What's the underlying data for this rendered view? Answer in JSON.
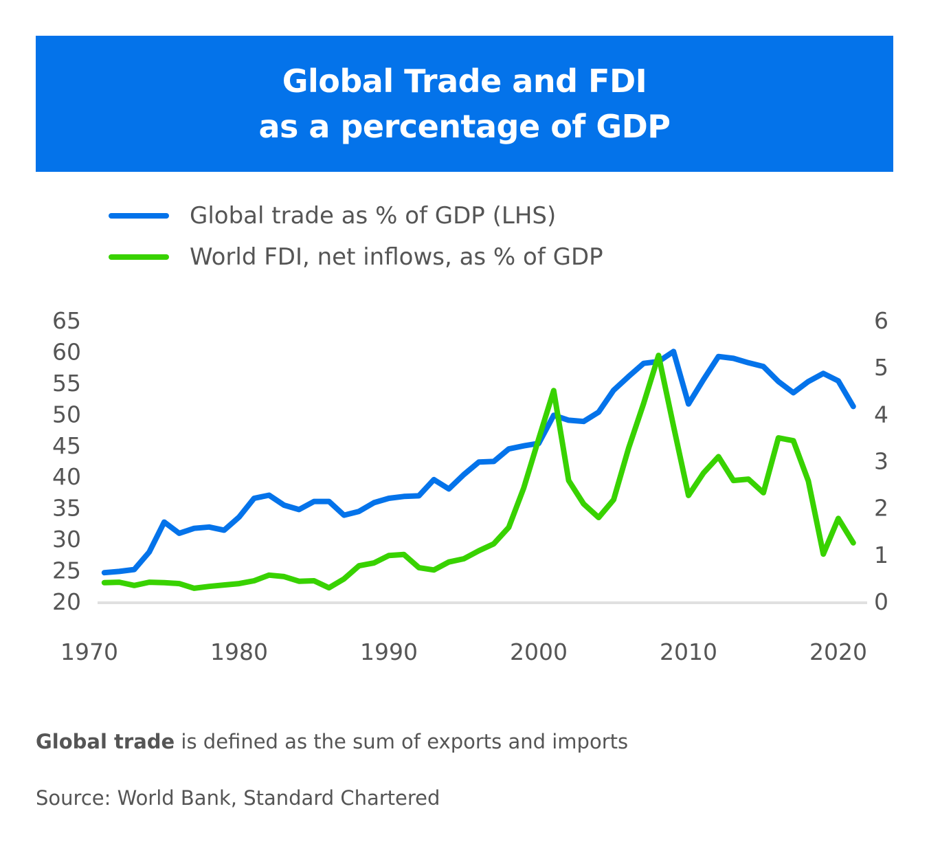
{
  "chart_data": {
    "type": "line",
    "title": "Global Trade and FDI",
    "subtitle": "as a percentage of GDP",
    "title_lines": [
      "Global Trade and FDI",
      "as a percentage of GDP"
    ],
    "header_color": "#0473EA",
    "xlabel": "",
    "ylabel": "",
    "xlim": [
      1970,
      2022
    ],
    "x_ticks": [
      "1970",
      "1980",
      "1990",
      "2000",
      "2010",
      "2020"
    ],
    "ylim_left": [
      20,
      65
    ],
    "y_ticks_left": [
      "20",
      "25",
      "30",
      "35",
      "40",
      "45",
      "50",
      "55",
      "60",
      "65"
    ],
    "ylim_right": [
      0,
      6
    ],
    "y_ticks_right": [
      "0",
      "1",
      "2",
      "3",
      "4",
      "5",
      "6"
    ],
    "grid": false,
    "legend_position": "top-left",
    "x": [
      1971,
      1972,
      1973,
      1974,
      1975,
      1976,
      1977,
      1978,
      1979,
      1980,
      1981,
      1982,
      1983,
      1984,
      1985,
      1986,
      1987,
      1988,
      1989,
      1990,
      1991,
      1992,
      1993,
      1994,
      1995,
      1996,
      1997,
      1998,
      1999,
      2000,
      2001,
      2002,
      2003,
      2004,
      2005,
      2006,
      2007,
      2008,
      2009,
      2010,
      2011,
      2012,
      2013,
      2014,
      2015,
      2016,
      2017,
      2018,
      2019,
      2020,
      2021
    ],
    "series": [
      {
        "name": "Global trade as % of GDP (LHS)",
        "axis": "left",
        "color": "#0473EA",
        "values": [
          24.6,
          24.8,
          25.1,
          27.9,
          32.7,
          30.9,
          31.7,
          31.9,
          31.4,
          33.5,
          36.5,
          37.0,
          35.4,
          34.7,
          36.0,
          36.0,
          33.8,
          34.4,
          35.8,
          36.5,
          36.8,
          36.9,
          39.5,
          38.0,
          40.3,
          42.3,
          42.4,
          44.4,
          44.9,
          45.3,
          49.8,
          49.0,
          48.8,
          50.3,
          53.8,
          56.0,
          58.1,
          58.4,
          60.0,
          51.6,
          55.5,
          59.2,
          58.9,
          58.2,
          57.6,
          55.2,
          53.4,
          55.2,
          56.5,
          55.3,
          51.2
        ]
      },
      {
        "name": "World FDI, net inflows, as % of GDP",
        "axis": "right",
        "color": "#38D200",
        "values": [
          0.4,
          0.41,
          0.34,
          0.41,
          0.4,
          0.38,
          0.28,
          0.32,
          0.35,
          0.38,
          0.44,
          0.56,
          0.53,
          0.43,
          0.44,
          0.29,
          0.48,
          0.76,
          0.82,
          0.98,
          1.0,
          0.72,
          0.67,
          0.84,
          0.91,
          1.08,
          1.23,
          1.58,
          2.42,
          3.47,
          4.5,
          2.58,
          2.08,
          1.79,
          2.17,
          3.27,
          4.22,
          5.25,
          3.74,
          2.26,
          2.74,
          3.09,
          2.58,
          2.61,
          2.32,
          3.49,
          3.43,
          2.57,
          1.01,
          1.77,
          1.25
        ]
      }
    ]
  },
  "footnote": {
    "bold": "Global trade",
    "rest": " is defined as the sum of exports and imports"
  },
  "source": "Source: World Bank, Standard Chartered"
}
